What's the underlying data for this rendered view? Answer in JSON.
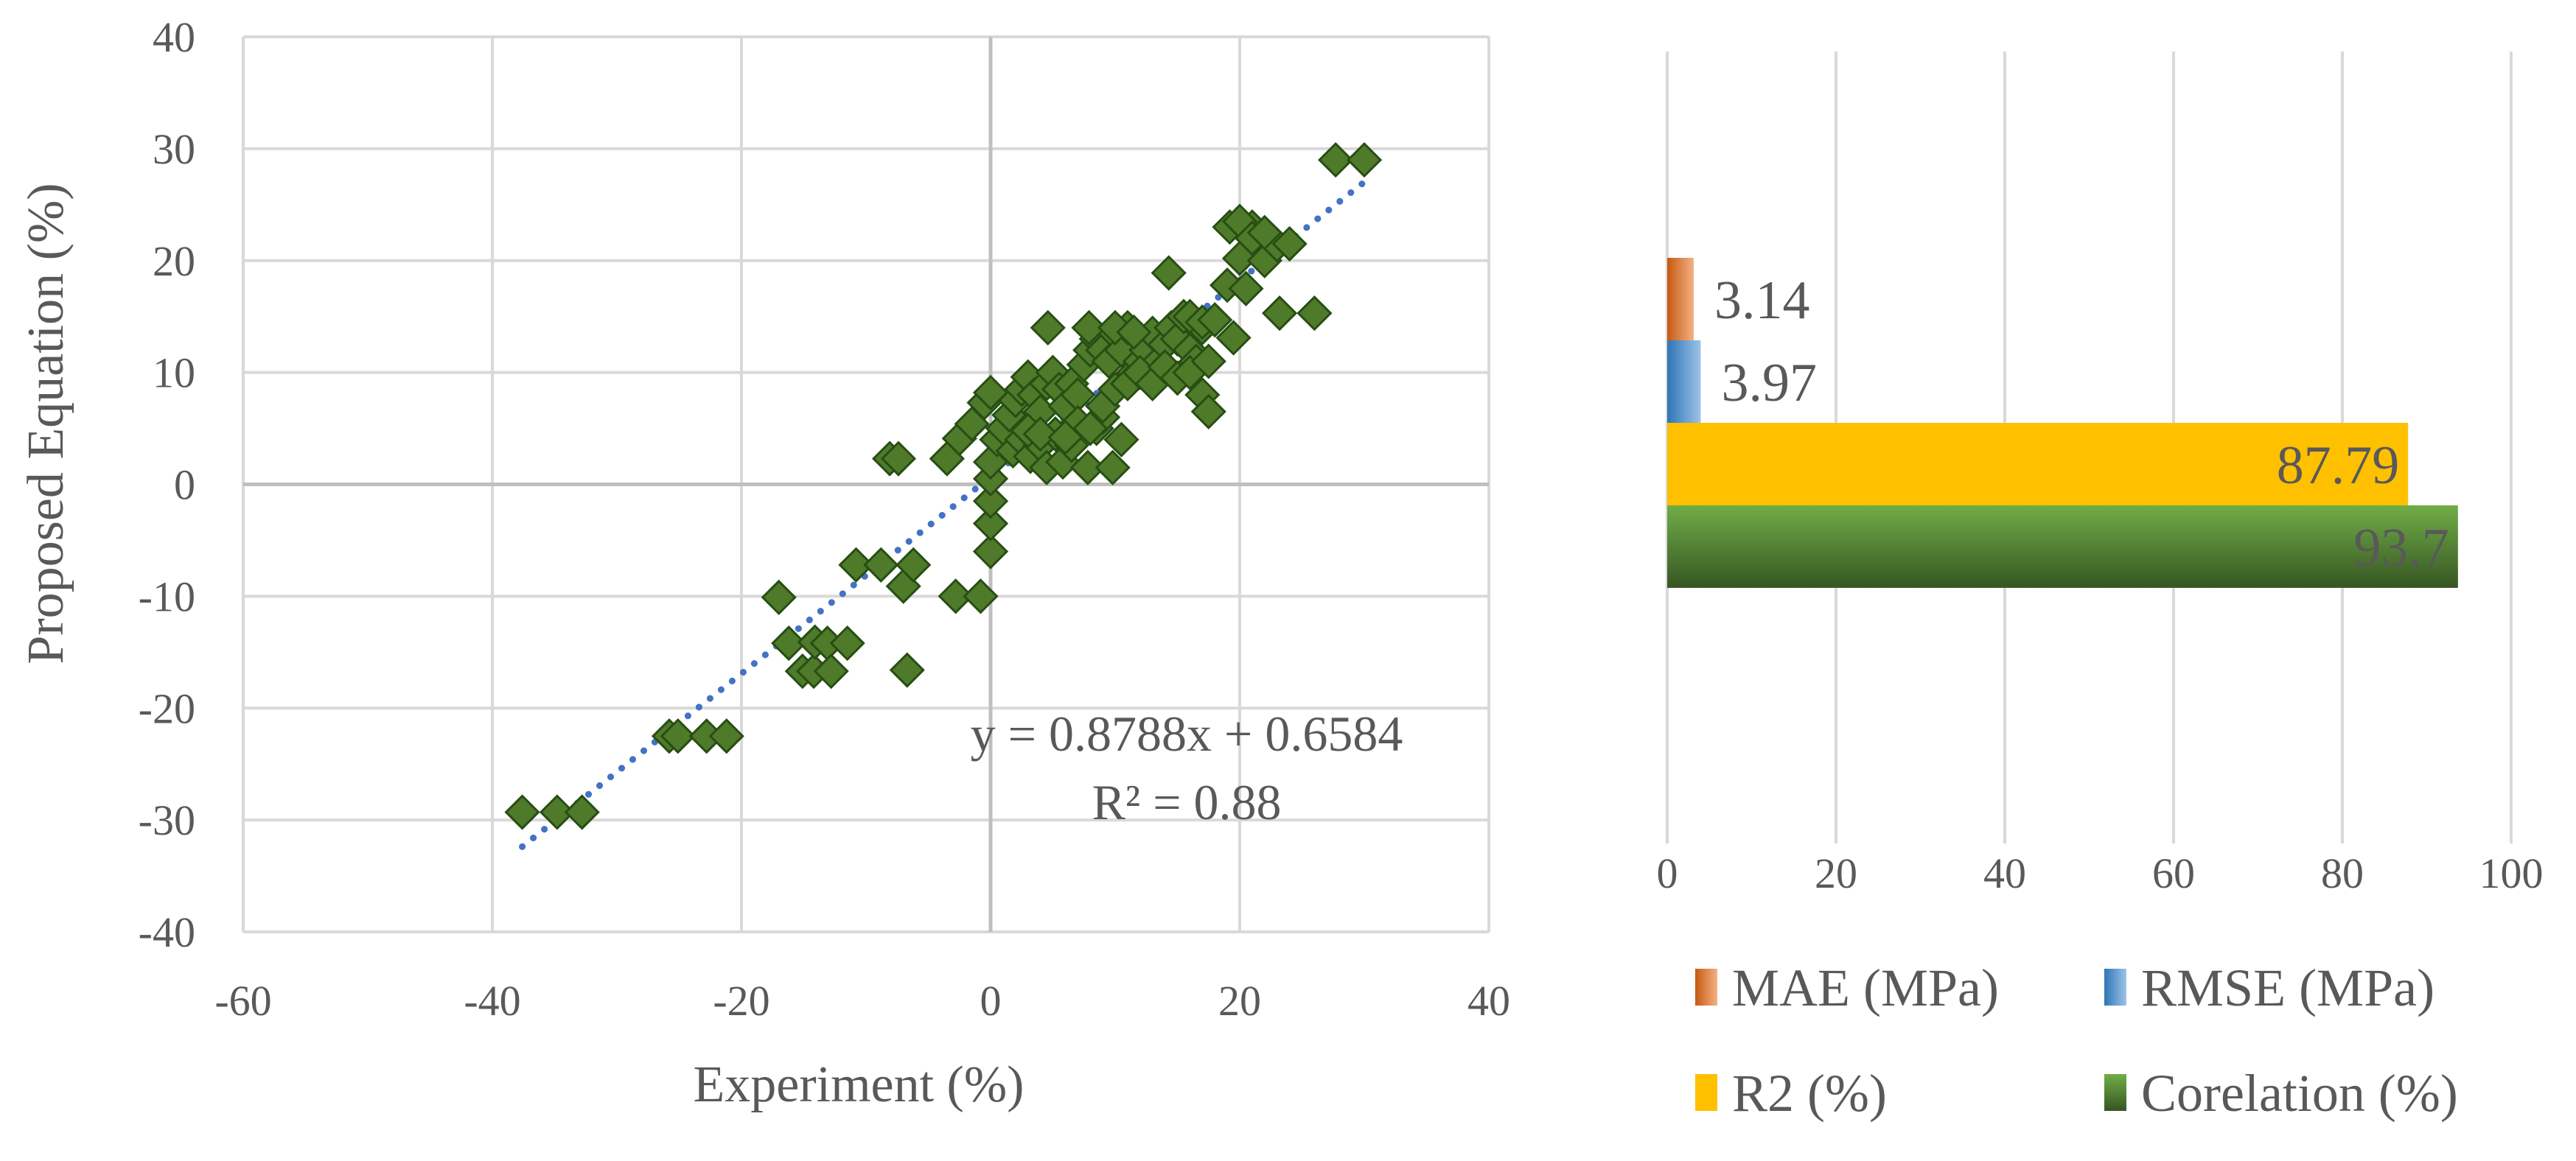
{
  "chart_data": [
    {
      "type": "scatter",
      "xlabel": "Experiment (%)",
      "ylabel": "Proposed Equation (%)",
      "xlim": [
        -60,
        40
      ],
      "ylim": [
        -40,
        40
      ],
      "xticks": [
        -60,
        -40,
        -20,
        0,
        20,
        40
      ],
      "yticks": [
        -40,
        -30,
        -20,
        -10,
        0,
        10,
        20,
        30,
        40
      ],
      "xtick_labels": [
        "-60",
        "-40",
        "-20",
        "0",
        "20",
        "40"
      ],
      "ytick_labels": [
        "-40",
        "-30",
        "-20",
        "-10",
        "0",
        "10",
        "20",
        "30",
        "40"
      ],
      "grid": true,
      "marker_color": "#4e7a2a",
      "trendline": {
        "style": "dotted",
        "color": "#4472c4",
        "slope": 0.8788,
        "intercept": 0.6584,
        "x_range": [
          -37.6,
          30
        ]
      },
      "equation_text": "y = 0.8788x + 0.6584",
      "r2_text": "R² = 0.88",
      "points": [
        [
          -37.6,
          -29.3
        ],
        [
          -34.8,
          -29.3
        ],
        [
          -32.8,
          -29.3
        ],
        [
          -25.8,
          -22.5
        ],
        [
          -25.1,
          -22.5
        ],
        [
          -22.8,
          -22.5
        ],
        [
          -21.2,
          -22.5
        ],
        [
          -17,
          -10.1
        ],
        [
          -16.2,
          -14.2
        ],
        [
          -15.1,
          -16.7
        ],
        [
          -14.2,
          -16.7
        ],
        [
          -14.1,
          -14.1
        ],
        [
          -13.1,
          -14.2
        ],
        [
          -12.8,
          -16.7
        ],
        [
          -11.5,
          -14.2
        ],
        [
          -10.8,
          -7.2
        ],
        [
          -8.8,
          -7.2
        ],
        [
          -7,
          -9.1
        ],
        [
          -6.2,
          -7.2
        ],
        [
          -6.7,
          -16.6
        ],
        [
          -8.1,
          2.3
        ],
        [
          -7.4,
          2.3
        ],
        [
          -3.5,
          2.3
        ],
        [
          -2.5,
          4.1
        ],
        [
          -1.5,
          5.4
        ],
        [
          -0.5,
          7.3
        ],
        [
          0,
          8.2
        ],
        [
          -2.8,
          -10
        ],
        [
          -0.8,
          -10
        ],
        [
          0,
          -6
        ],
        [
          0,
          -3.5
        ],
        [
          0,
          -1.5
        ],
        [
          0,
          0.5
        ],
        [
          0,
          2
        ],
        [
          0.5,
          4
        ],
        [
          1,
          5
        ],
        [
          1.5,
          6.2
        ],
        [
          2,
          7.5
        ],
        [
          2.5,
          8.5
        ],
        [
          3,
          9.6
        ],
        [
          3.5,
          8
        ],
        [
          4,
          6.5
        ],
        [
          4.5,
          9
        ],
        [
          5,
          10
        ],
        [
          5.5,
          8.5
        ],
        [
          6,
          7
        ],
        [
          6.5,
          9
        ],
        [
          7,
          8
        ],
        [
          7.5,
          10.7
        ],
        [
          8,
          12
        ],
        [
          8.5,
          13
        ],
        [
          9,
          12
        ],
        [
          9.5,
          11
        ],
        [
          10,
          13.5
        ],
        [
          10.5,
          12
        ],
        [
          11,
          14
        ],
        [
          11.5,
          10
        ],
        [
          12,
          11
        ],
        [
          12.5,
          12
        ],
        [
          13,
          13.5
        ],
        [
          13.5,
          11
        ],
        [
          14,
          12.5
        ],
        [
          14.5,
          14
        ],
        [
          15,
          13
        ],
        [
          15.5,
          15
        ],
        [
          16,
          12
        ],
        [
          16.5,
          11
        ],
        [
          17,
          14
        ],
        [
          1.8,
          3
        ],
        [
          2.5,
          4
        ],
        [
          3.2,
          2.5
        ],
        [
          4,
          3.5
        ],
        [
          4.5,
          1.5
        ],
        [
          5.2,
          4.5
        ],
        [
          5.8,
          2
        ],
        [
          6.5,
          3.5
        ],
        [
          7,
          5.5
        ],
        [
          7.8,
          1.5
        ],
        [
          8.5,
          5
        ],
        [
          9,
          6
        ],
        [
          9.8,
          1.5
        ],
        [
          10.5,
          4
        ],
        [
          3,
          4.8
        ],
        [
          4,
          4.5
        ],
        [
          6,
          4.2
        ],
        [
          8,
          5
        ],
        [
          9,
          7
        ],
        [
          10,
          8.5
        ],
        [
          11,
          9
        ],
        [
          12,
          10
        ],
        [
          13,
          9
        ],
        [
          14,
          10.5
        ],
        [
          15,
          9.5
        ],
        [
          16,
          10
        ],
        [
          17,
          8
        ],
        [
          17.5,
          6.5
        ],
        [
          4.6,
          14
        ],
        [
          7.9,
          14
        ],
        [
          10,
          14
        ],
        [
          11.5,
          13.6
        ],
        [
          14.3,
          18.9
        ],
        [
          16,
          15
        ],
        [
          17,
          14.5
        ],
        [
          17.5,
          11
        ],
        [
          18,
          14.7
        ],
        [
          19,
          17.8
        ],
        [
          19.2,
          23
        ],
        [
          19.5,
          13.1
        ],
        [
          20,
          20.2
        ],
        [
          20.5,
          17.5
        ],
        [
          21,
          23
        ],
        [
          21.5,
          21.8
        ],
        [
          22,
          20
        ],
        [
          23,
          21.4
        ],
        [
          24,
          21.5
        ],
        [
          20,
          23.5
        ],
        [
          21,
          22
        ],
        [
          22,
          22.5
        ],
        [
          23.2,
          15.3
        ],
        [
          26,
          15.3
        ],
        [
          27.7,
          29
        ],
        [
          30,
          29
        ]
      ]
    },
    {
      "type": "bar",
      "orientation": "horizontal",
      "xlim": [
        0,
        100
      ],
      "xticks": [
        0,
        20,
        40,
        60,
        80,
        100
      ],
      "xtick_labels": [
        "0",
        "20",
        "40",
        "60",
        "80",
        "100"
      ],
      "grid": true,
      "legend_position": "bottom",
      "series": [
        {
          "name": "MAE (MPa)",
          "value": 3.14,
          "label": "3.14",
          "color": "#c55a11",
          "color_light": "#f4b183"
        },
        {
          "name": "RMSE (MPa)",
          "value": 3.97,
          "label": "3.97",
          "color": "#2e75b6",
          "color_light": "#9dc3e6"
        },
        {
          "name": "R2 (%)",
          "value": 87.79,
          "label": "87.79",
          "color": "#ffc000",
          "color_light": "#ffc000"
        },
        {
          "name": "Corelation (%)",
          "value": 93.7,
          "label": "93.7",
          "color": "#375623",
          "color_light": "#70ad47"
        }
      ]
    }
  ]
}
